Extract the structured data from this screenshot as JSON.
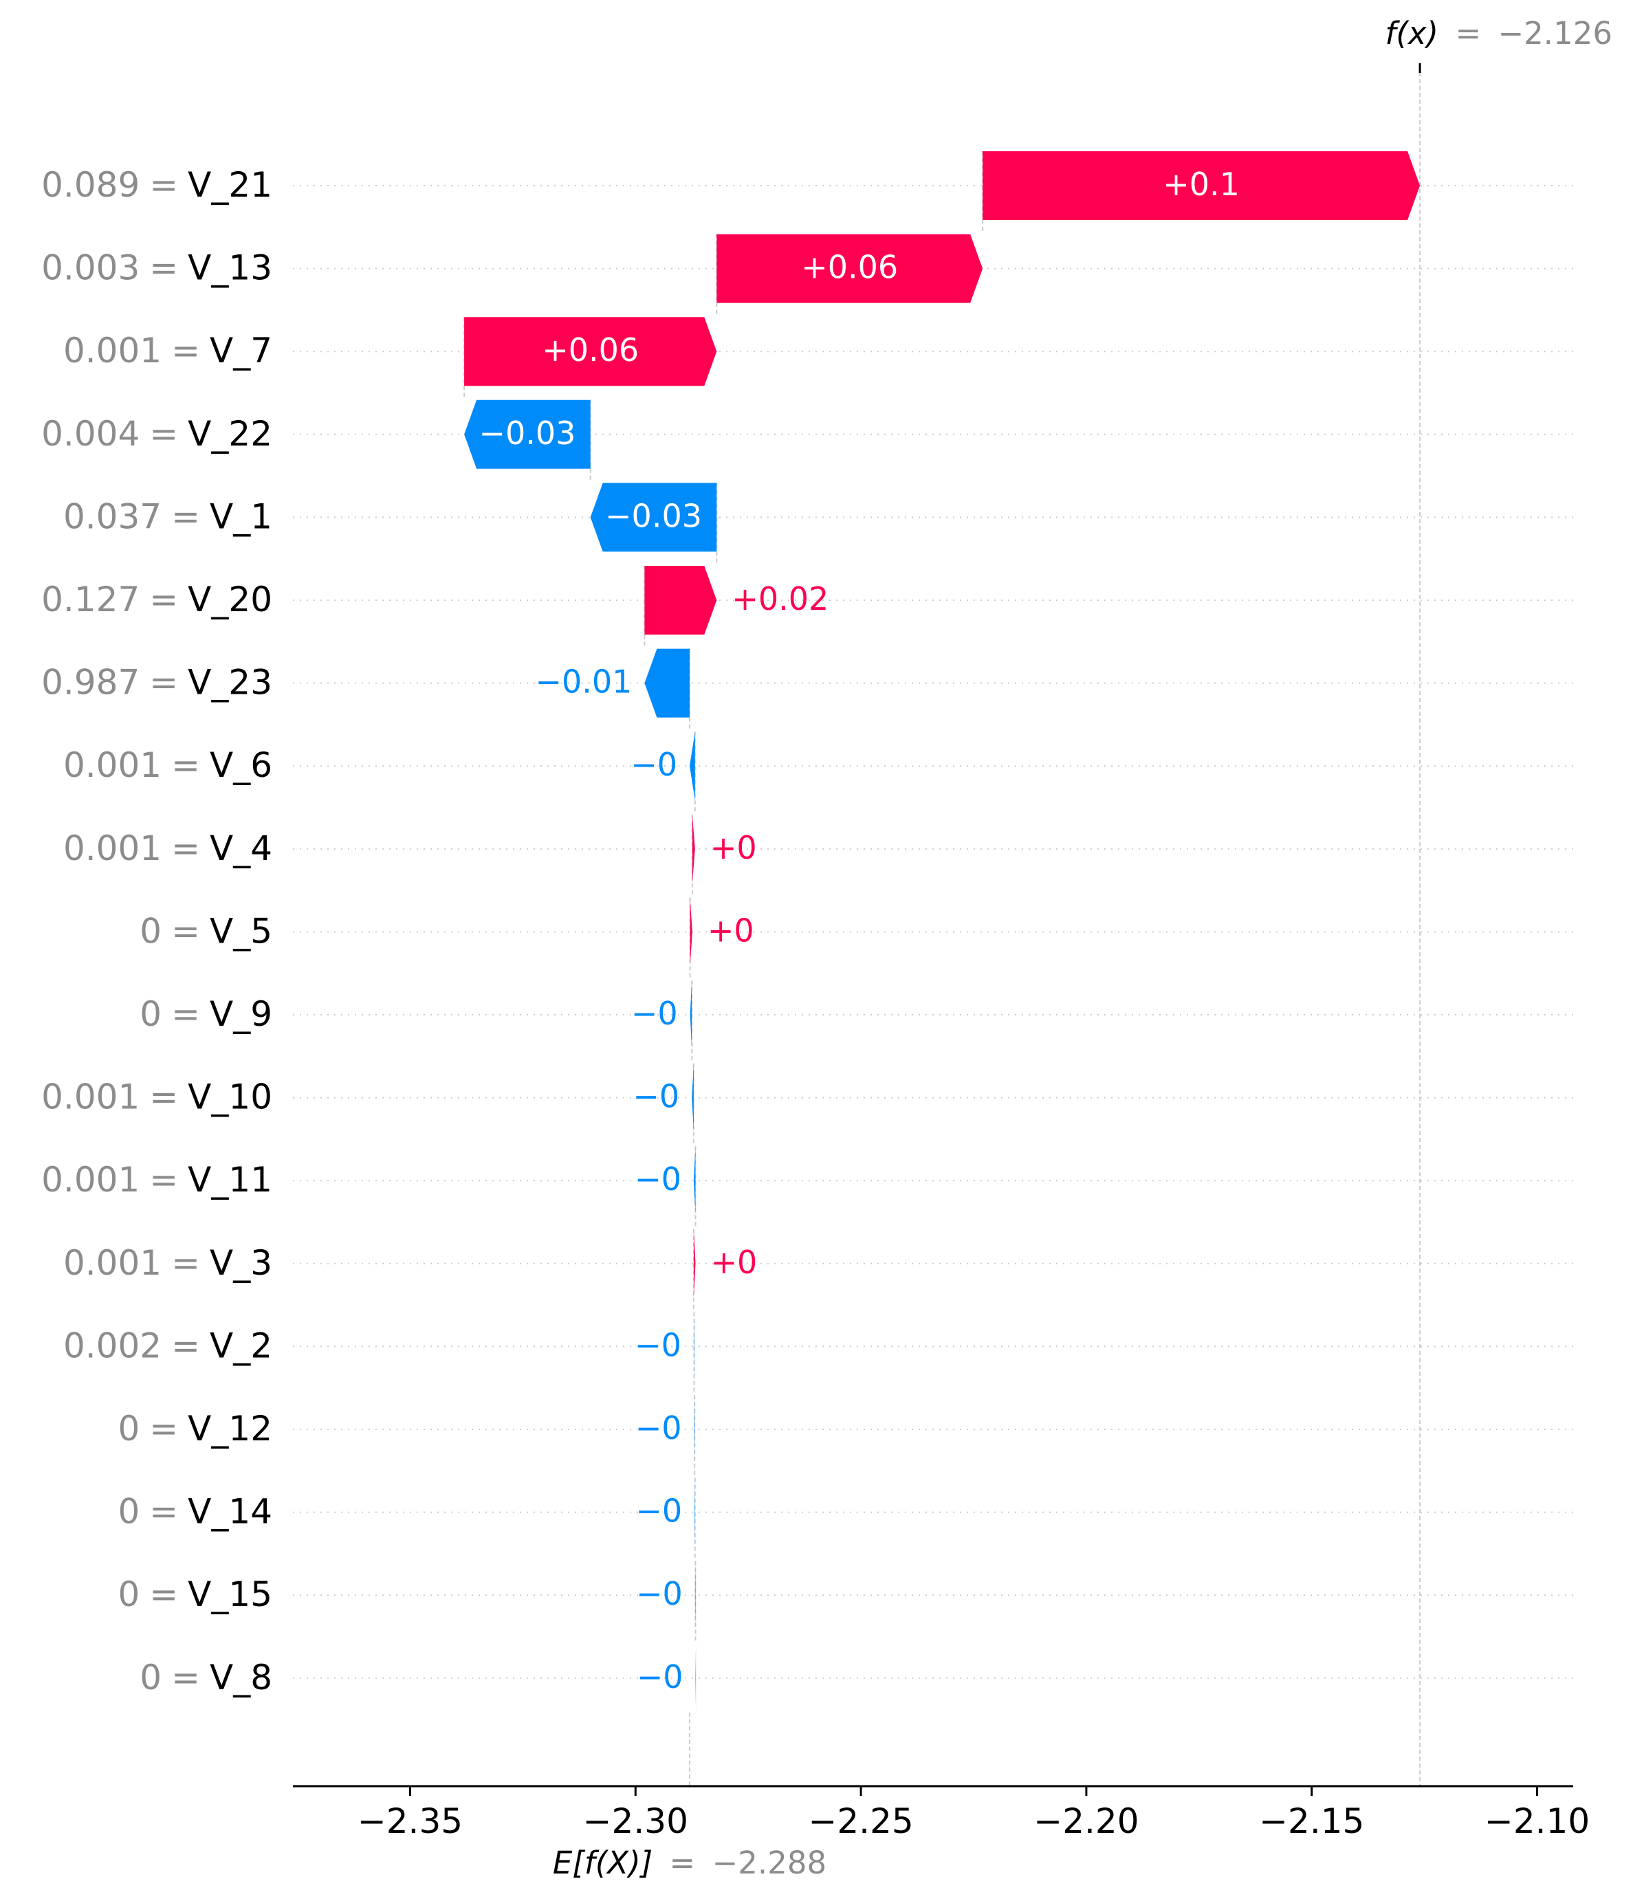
{
  "chart_data": {
    "type": "waterfall",
    "title": "",
    "xlabel": "",
    "ylabel": "",
    "xlim": [
      -2.376,
      -2.092
    ],
    "xticks": [
      -2.35,
      -2.3,
      -2.25,
      -2.2,
      -2.15,
      -2.1
    ],
    "xtick_labels": [
      "−2.35",
      "−2.30",
      "−2.25",
      "−2.20",
      "−2.15",
      "−2.10"
    ],
    "base_value": -2.288,
    "output_value": -2.126,
    "fx_label": {
      "name": "f(x)",
      "eq": "=",
      "value": "−2.126"
    },
    "ex_label": {
      "name": "E[f(X)]",
      "eq": "=",
      "value": "−2.288"
    },
    "colors": {
      "positive": "#ff0051",
      "negative": "#008bfb",
      "feature_value": "#8c8c8c",
      "axis": "#000000",
      "guide": "#cccccc"
    },
    "features": [
      {
        "feature_value": "0.089",
        "eq": "=",
        "name": "V_21",
        "shap": 0.097,
        "label": "+0.1"
      },
      {
        "feature_value": "0.003",
        "eq": "=",
        "name": "V_13",
        "shap": 0.059,
        "label": "+0.06"
      },
      {
        "feature_value": "0.001",
        "eq": "=",
        "name": "V_7",
        "shap": 0.056,
        "label": "+0.06"
      },
      {
        "feature_value": "0.004",
        "eq": "=",
        "name": "V_22",
        "shap": -0.028,
        "label": "−0.03"
      },
      {
        "feature_value": "0.037",
        "eq": "=",
        "name": "V_1",
        "shap": -0.028,
        "label": "−0.03"
      },
      {
        "feature_value": "0.127",
        "eq": "=",
        "name": "V_20",
        "shap": 0.016,
        "label": "+0.02"
      },
      {
        "feature_value": "0.987",
        "eq": "=",
        "name": "V_23",
        "shap": -0.01,
        "label": "−0.01"
      },
      {
        "feature_value": "0.001",
        "eq": "=",
        "name": "V_6",
        "shap": -0.0012,
        "label": "−0"
      },
      {
        "feature_value": "0.001",
        "eq": "=",
        "name": "V_4",
        "shap": 0.0006,
        "label": "+0"
      },
      {
        "feature_value": "0",
        "eq": "=",
        "name": "V_5",
        "shap": 0.0005,
        "label": "+0"
      },
      {
        "feature_value": "0",
        "eq": "=",
        "name": "V_9",
        "shap": -0.0004,
        "label": "−0"
      },
      {
        "feature_value": "0.001",
        "eq": "=",
        "name": "V_10",
        "shap": -0.0004,
        "label": "−0"
      },
      {
        "feature_value": "0.001",
        "eq": "=",
        "name": "V_11",
        "shap": -0.0004,
        "label": "−0"
      },
      {
        "feature_value": "0.001",
        "eq": "=",
        "name": "V_3",
        "shap": 0.0004,
        "label": "+0"
      },
      {
        "feature_value": "0.002",
        "eq": "=",
        "name": "V_2",
        "shap": -0.0001,
        "label": "−0"
      },
      {
        "feature_value": "0",
        "eq": "=",
        "name": "V_12",
        "shap": -0.0001,
        "label": "−0"
      },
      {
        "feature_value": "0",
        "eq": "=",
        "name": "V_14",
        "shap": -0.0001,
        "label": "−0"
      },
      {
        "feature_value": "0",
        "eq": "=",
        "name": "V_15",
        "shap": -0.0001,
        "label": "−0"
      },
      {
        "feature_value": "0",
        "eq": "=",
        "name": "V_8",
        "shap": -0.0001,
        "label": "−0"
      }
    ]
  }
}
